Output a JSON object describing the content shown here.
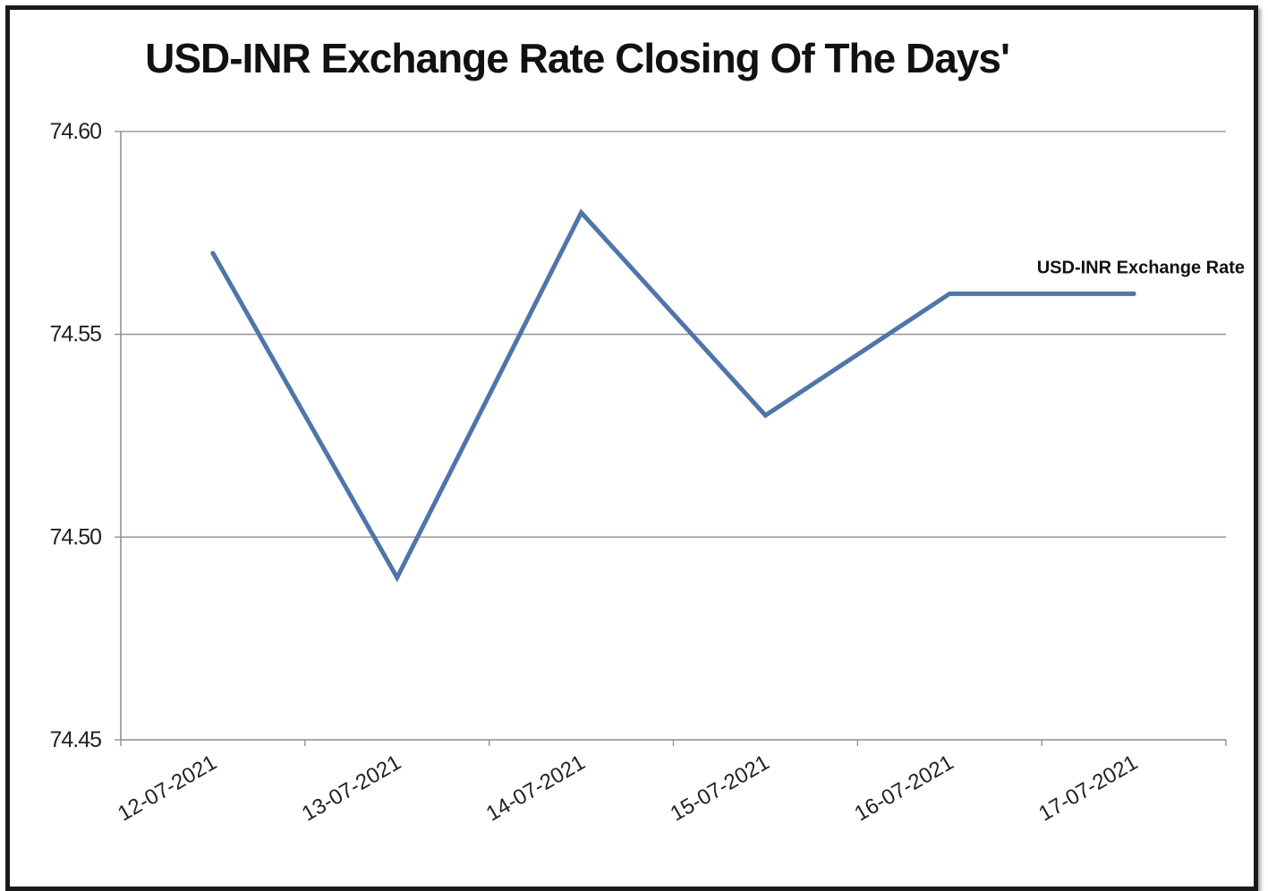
{
  "chart_data": {
    "type": "line",
    "title": "USD-INR Exchange Rate Closing Of The Days'",
    "xlabel": "",
    "ylabel": "",
    "x": [
      "12-07-2021",
      "13-07-2021",
      "14-07-2021",
      "15-07-2021",
      "16-07-2021",
      "17-07-2021"
    ],
    "series": [
      {
        "name": "USD-INR Exchange Rate",
        "values": [
          74.57,
          74.49,
          74.58,
          74.53,
          74.56,
          74.56
        ],
        "color": "#4f75aa"
      }
    ],
    "ylim": [
      74.45,
      74.6
    ],
    "yticks": [
      "74.45",
      "74.50",
      "74.55",
      "74.60"
    ],
    "grid": true,
    "legend": "end-of-line label"
  }
}
